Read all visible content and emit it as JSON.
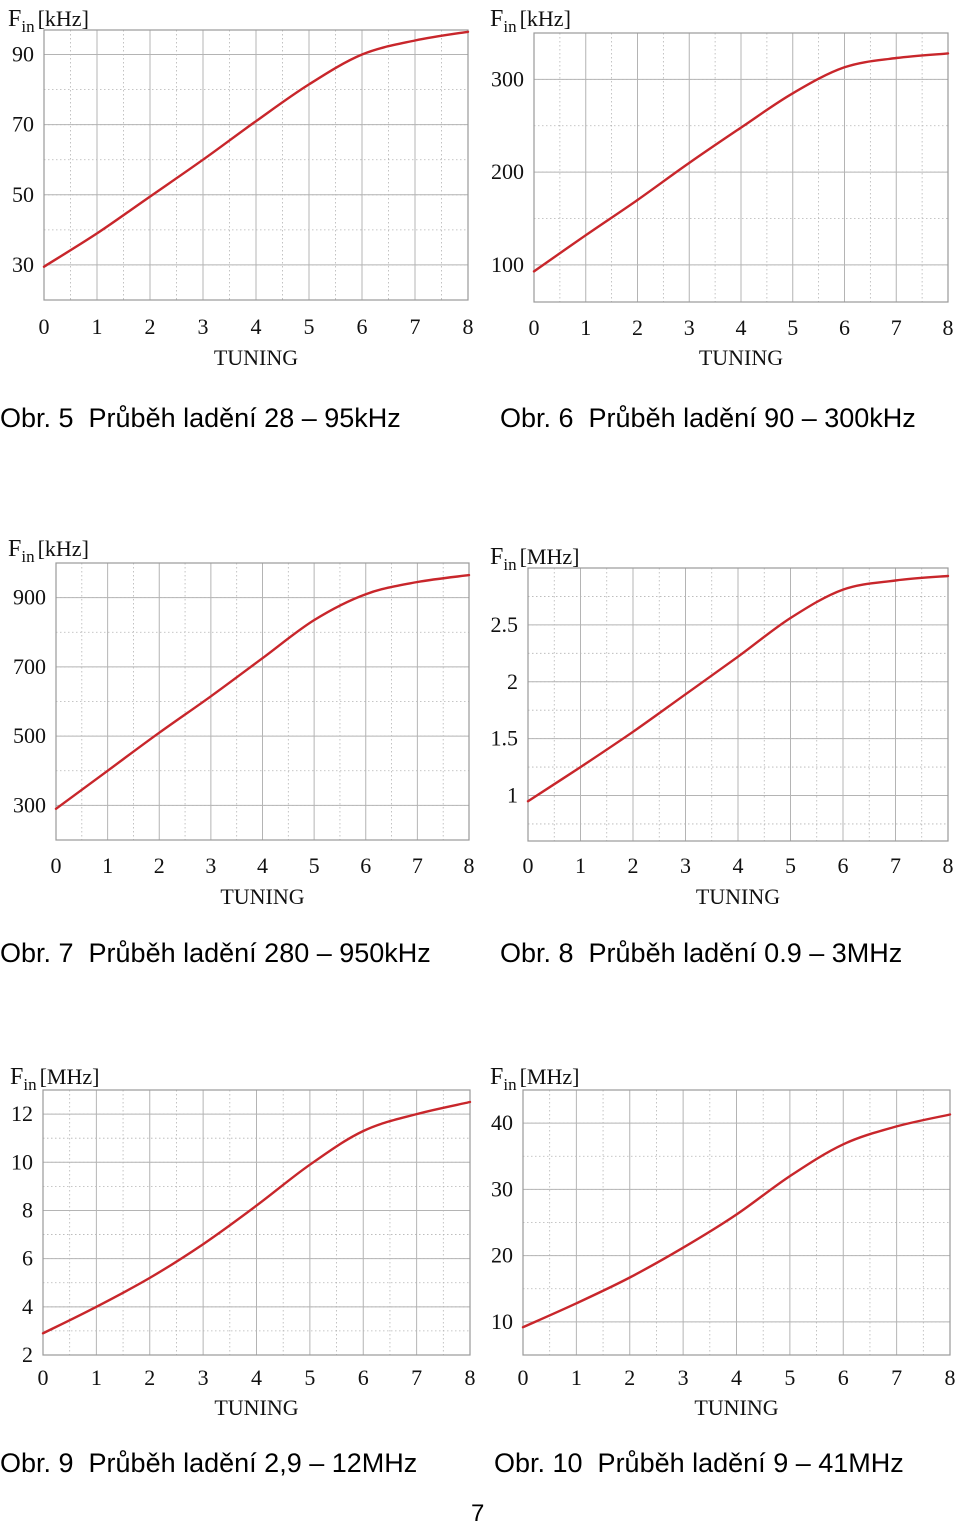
{
  "page_number": "7",
  "captions": [
    "Obr. 5  Průběh ladění 28 – 95kHz",
    "Obr. 6  Průběh ladění 90 – 300kHz",
    "Obr. 7  Průběh ladění 280 – 950kHz",
    "Obr. 8  Průběh ladění 0.9 – 3MHz",
    "Obr. 9  Průběh ladění 2,9 – 12MHz",
    "Obr. 10  Průběh ladění 9 – 41MHz"
  ],
  "colors": {
    "curve": "#c8262b",
    "grid": "#b4b4b4",
    "frame": "#9a9a9a"
  },
  "chart_data": [
    {
      "type": "line",
      "ylabel_main": "F",
      "ylabel_sub": "in",
      "ylabel_unit": "[kHz]",
      "xlabel": "TUNING",
      "xlim": [
        0,
        8
      ],
      "ylim": [
        20,
        97
      ],
      "xticks": [
        "0",
        "1",
        "2",
        "3",
        "4",
        "5",
        "6",
        "7",
        "8"
      ],
      "yticks": [
        30,
        50,
        70,
        90
      ],
      "ytick_labels": [
        "30",
        "50",
        "70",
        "90"
      ],
      "series": [
        {
          "x": [
            0,
            1,
            2,
            3,
            4,
            5,
            6,
            7,
            8
          ],
          "values": [
            29.5,
            39,
            49.5,
            60,
            71,
            81.5,
            90,
            94,
            96.5
          ]
        }
      ]
    },
    {
      "type": "line",
      "ylabel_main": "F",
      "ylabel_sub": "in",
      "ylabel_unit": "[kHz]",
      "xlabel": "TUNING",
      "xlim": [
        0,
        8
      ],
      "ylim": [
        60,
        350
      ],
      "xticks": [
        "0",
        "1",
        "2",
        "3",
        "4",
        "5",
        "6",
        "7",
        "8"
      ],
      "yticks": [
        100,
        200,
        300
      ],
      "ytick_labels": [
        "100",
        "200",
        "300"
      ],
      "series": [
        {
          "x": [
            0,
            1,
            2,
            3,
            4,
            5,
            6,
            7,
            8
          ],
          "values": [
            93,
            132,
            170,
            210,
            248,
            285,
            313,
            323,
            328
          ]
        }
      ]
    },
    {
      "type": "line",
      "ylabel_main": "F",
      "ylabel_sub": "in",
      "ylabel_unit": "[kHz]",
      "xlabel": "TUNING",
      "xlim": [
        0,
        8
      ],
      "ylim": [
        200,
        1000
      ],
      "xticks": [
        "0",
        "1",
        "2",
        "3",
        "4",
        "5",
        "6",
        "7",
        "8"
      ],
      "yticks": [
        300,
        500,
        700,
        900
      ],
      "ytick_labels": [
        "300",
        "500",
        "700",
        "900"
      ],
      "series": [
        {
          "x": [
            0,
            1,
            2,
            3,
            4,
            5,
            6,
            7,
            8
          ],
          "values": [
            290,
            400,
            510,
            615,
            725,
            835,
            910,
            945,
            965
          ]
        }
      ]
    },
    {
      "type": "line",
      "ylabel_main": "F",
      "ylabel_sub": "in",
      "ylabel_unit": "[MHz]",
      "xlabel": "TUNING",
      "xlim": [
        0,
        8
      ],
      "ylim": [
        0.6,
        3.0
      ],
      "xticks": [
        "0",
        "1",
        "2",
        "3",
        "4",
        "5",
        "6",
        "7",
        "8"
      ],
      "yticks": [
        1,
        1.5,
        2,
        2.5
      ],
      "ytick_labels": [
        "1",
        "1.5",
        "2",
        "2.5"
      ],
      "series": [
        {
          "x": [
            0,
            1,
            2,
            3,
            4,
            5,
            6,
            7,
            8
          ],
          "values": [
            0.95,
            1.25,
            1.56,
            1.89,
            2.22,
            2.56,
            2.81,
            2.89,
            2.93
          ]
        }
      ]
    },
    {
      "type": "line",
      "ylabel_main": "F",
      "ylabel_sub": "in",
      "ylabel_unit": "[MHz]",
      "xlabel": "TUNING",
      "xlim": [
        0,
        8
      ],
      "ylim": [
        2,
        13
      ],
      "xticks": [
        "0",
        "1",
        "2",
        "3",
        "4",
        "5",
        "6",
        "7",
        "8"
      ],
      "yticks": [
        2,
        4,
        6,
        8,
        10,
        12
      ],
      "ytick_labels": [
        "2",
        "4",
        "6",
        "8",
        "10",
        "12"
      ],
      "series": [
        {
          "x": [
            0,
            1,
            2,
            3,
            4,
            5,
            6,
            7,
            8
          ],
          "values": [
            2.9,
            4.0,
            5.2,
            6.6,
            8.2,
            9.9,
            11.3,
            12.0,
            12.5
          ]
        }
      ]
    },
    {
      "type": "line",
      "ylabel_main": "F",
      "ylabel_sub": "in",
      "ylabel_unit": "[MHz]",
      "xlabel": "TUNING",
      "xlim": [
        0,
        8
      ],
      "ylim": [
        5,
        45
      ],
      "xticks": [
        "0",
        "1",
        "2",
        "3",
        "4",
        "5",
        "6",
        "7",
        "8"
      ],
      "yticks": [
        10,
        20,
        30,
        40
      ],
      "ytick_labels": [
        "10",
        "20",
        "30",
        "40"
      ],
      "series": [
        {
          "x": [
            0,
            1,
            2,
            3,
            4,
            5,
            6,
            7,
            8
          ],
          "values": [
            9.2,
            12.8,
            16.7,
            21.2,
            26.2,
            32.0,
            36.8,
            39.5,
            41.3
          ]
        }
      ]
    }
  ]
}
